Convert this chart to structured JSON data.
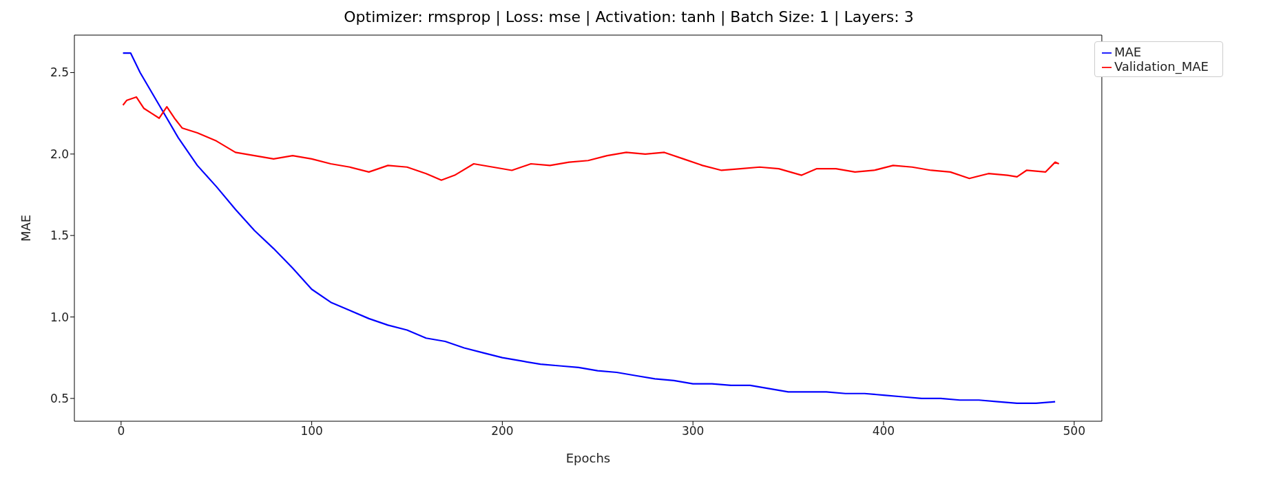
{
  "chart_data": {
    "type": "line",
    "title": "Optimizer: rmsprop | Loss: mse | Activation: tanh | Batch Size: 1 | Layers: 3",
    "xlabel": "Epochs",
    "ylabel": "MAE",
    "xlim": [
      -24.5,
      514.5
    ],
    "ylim": [
      0.36,
      2.73
    ],
    "xticks": [
      0,
      100,
      200,
      300,
      400,
      500
    ],
    "yticks": [
      0.5,
      {
        "value": 1,
        "label": "1.0"
      },
      1.5,
      {
        "value": 2,
        "label": "2.0"
      },
      2.5
    ],
    "grid": false,
    "legend": "top right",
    "marker": "none",
    "line_style": "solid",
    "series": [
      {
        "name": "MAE",
        "color": "#0000ff",
        "x": [
          1,
          5,
          10,
          20,
          30,
          40,
          50,
          60,
          70,
          80,
          90,
          100,
          110,
          120,
          130,
          140,
          150,
          160,
          170,
          180,
          190,
          200,
          210,
          220,
          230,
          240,
          250,
          260,
          270,
          280,
          290,
          300,
          310,
          320,
          330,
          340,
          350,
          360,
          370,
          380,
          390,
          400,
          410,
          420,
          430,
          440,
          450,
          460,
          470,
          480,
          490
        ],
        "values": [
          2.62,
          2.62,
          2.5,
          2.3,
          2.1,
          1.93,
          1.8,
          1.66,
          1.53,
          1.42,
          1.3,
          1.17,
          1.09,
          1.04,
          0.99,
          0.95,
          0.92,
          0.87,
          0.85,
          0.81,
          0.78,
          0.75,
          0.73,
          0.71,
          0.7,
          0.69,
          0.67,
          0.66,
          0.64,
          0.62,
          0.61,
          0.59,
          0.59,
          0.58,
          0.58,
          0.56,
          0.54,
          0.54,
          0.54,
          0.53,
          0.53,
          0.52,
          0.51,
          0.5,
          0.5,
          0.49,
          0.49,
          0.48,
          0.47,
          0.47,
          0.48
        ]
      },
      {
        "name": "Validation_MAE",
        "color": "#ff0000",
        "x": [
          1,
          3,
          8,
          12,
          16,
          20,
          24,
          28,
          32,
          40,
          50,
          60,
          70,
          80,
          90,
          100,
          110,
          120,
          130,
          140,
          150,
          160,
          168,
          175,
          185,
          195,
          205,
          215,
          225,
          235,
          245,
          255,
          265,
          275,
          285,
          295,
          305,
          315,
          325,
          335,
          345,
          357,
          365,
          375,
          385,
          395,
          405,
          415,
          425,
          435,
          445,
          455,
          465,
          470,
          475,
          485,
          490,
          492
        ],
        "values": [
          2.3,
          2.33,
          2.35,
          2.28,
          2.25,
          2.22,
          2.29,
          2.22,
          2.16,
          2.13,
          2.08,
          2.01,
          1.99,
          1.97,
          1.99,
          1.97,
          1.94,
          1.92,
          1.89,
          1.93,
          1.92,
          1.88,
          1.84,
          1.87,
          1.94,
          1.92,
          1.9,
          1.94,
          1.93,
          1.95,
          1.96,
          1.99,
          2.01,
          2.0,
          2.01,
          1.97,
          1.93,
          1.9,
          1.91,
          1.92,
          1.91,
          1.87,
          1.91,
          1.91,
          1.89,
          1.9,
          1.93,
          1.92,
          1.9,
          1.89,
          1.85,
          1.88,
          1.87,
          1.86,
          1.9,
          1.89,
          1.95,
          1.94
        ]
      }
    ]
  }
}
